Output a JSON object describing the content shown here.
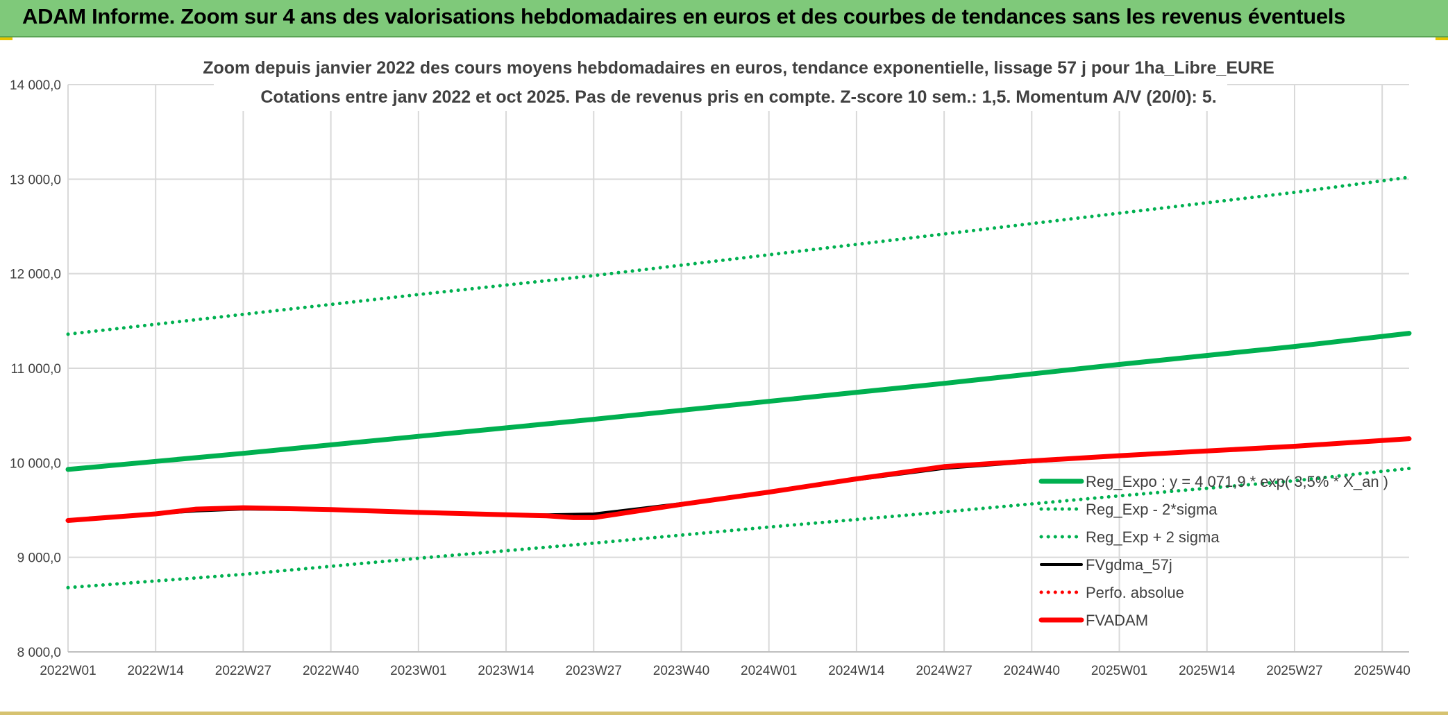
{
  "banner": {
    "title": "ADAM Informe. Zoom sur 4 ans des valorisations hebdomadaires en euros et des courbes de tendances sans les revenus éventuels"
  },
  "colors": {
    "banner": "#7fc97a",
    "green": "#00b050",
    "black": "#000000",
    "red": "#ff0000",
    "grid": "#d9d9d9",
    "axis_text": "#404040"
  },
  "chart_data": {
    "type": "line",
    "title": "Zoom depuis janvier 2022 des cours moyens hebdomadaires en euros, tendance exponentielle, lissage 57 j pour 1ha_Libre_EURE",
    "subtitle": "Cotations entre janv 2022 et oct 2025. Pas de revenus pris en compte. Z-score 10 sem.: 1,5. Momentum A/V (20/0): 5.",
    "xlabel": "",
    "ylabel": "",
    "ylim": [
      8000,
      14000
    ],
    "yticks": [
      "8 000,0",
      "9 000,0",
      "10 000,0",
      "11 000,0",
      "12 000,0",
      "13 000,0",
      "14 000,0"
    ],
    "x_ticks": [
      "2022W01",
      "2022W14",
      "2022W27",
      "2022W40",
      "2023W01",
      "2023W14",
      "2023W27",
      "2023W40",
      "2024W01",
      "2024W14",
      "2024W27",
      "2024W40",
      "2025W01",
      "2025W14",
      "2025W27",
      "2025W40"
    ],
    "x_start": "2022W01",
    "x_end": "2025W44",
    "grid": true,
    "legend_position": "bottom-right inside",
    "series": [
      {
        "name": "Reg_Expo : y = 4 071,9 * exp( 3,5% * X_an )",
        "style": "solid-thick",
        "color": "#00b050",
        "x": [
          "2022W01",
          "2022W27",
          "2023W01",
          "2023W27",
          "2024W01",
          "2024W27",
          "2025W01",
          "2025W27",
          "2025W44"
        ],
        "values": [
          9930,
          10100,
          10280,
          10460,
          10650,
          10840,
          11040,
          11230,
          11370
        ]
      },
      {
        "name": "Reg_Exp - 2*sigma",
        "style": "dotted",
        "color": "#00b050",
        "x": [
          "2022W01",
          "2022W27",
          "2023W01",
          "2023W27",
          "2024W01",
          "2024W27",
          "2025W01",
          "2025W27",
          "2025W44"
        ],
        "values": [
          8680,
          8820,
          8990,
          9150,
          9320,
          9480,
          9650,
          9810,
          9940
        ]
      },
      {
        "name": "Reg_Exp + 2 sigma",
        "style": "dotted",
        "color": "#00b050",
        "x": [
          "2022W01",
          "2022W27",
          "2023W01",
          "2023W27",
          "2024W01",
          "2024W27",
          "2025W01",
          "2025W27",
          "2025W44"
        ],
        "values": [
          11360,
          11570,
          11780,
          11980,
          12200,
          12420,
          12640,
          12860,
          13020
        ]
      },
      {
        "name": "FVgdma_57j",
        "style": "solid",
        "color": "#000000",
        "x": [
          "2022W01",
          "2022W14",
          "2022W20",
          "2022W27",
          "2022W40",
          "2023W01",
          "2023W14",
          "2023W20",
          "2023W27",
          "2023W40",
          "2024W01",
          "2024W14",
          "2024W27",
          "2024W40",
          "2025W01",
          "2025W14",
          "2025W27",
          "2025W44"
        ],
        "values": [
          9390,
          9460,
          9490,
          9510,
          9500,
          9470,
          9450,
          9450,
          9460,
          9570,
          9690,
          9820,
          9940,
          10010,
          10070,
          10120,
          10170,
          10250
        ]
      },
      {
        "name": "Perfo. absolue",
        "style": "dotted",
        "color": "#ff0000",
        "x": [
          "2022W01",
          "2022W14",
          "2022W20",
          "2022W27",
          "2022W40",
          "2023W01",
          "2023W14",
          "2023W20",
          "2023W27",
          "2023W40",
          "2024W01",
          "2024W14",
          "2024W27",
          "2024W40",
          "2025W01",
          "2025W14",
          "2025W27",
          "2025W44"
        ],
        "values": [
          9390,
          9460,
          9510,
          9525,
          9505,
          9475,
          9450,
          9440,
          9420,
          9560,
          9690,
          9830,
          9960,
          10020,
          10075,
          10125,
          10175,
          10255
        ]
      },
      {
        "name": "FVADAM",
        "style": "solid-thick",
        "color": "#ff0000",
        "x": [
          "2022W01",
          "2022W14",
          "2022W20",
          "2022W27",
          "2022W40",
          "2023W01",
          "2023W14",
          "2023W20",
          "2023W24",
          "2023W27",
          "2023W40",
          "2024W01",
          "2024W14",
          "2024W27",
          "2024W40",
          "2025W01",
          "2025W14",
          "2025W27",
          "2025W44"
        ],
        "values": [
          9390,
          9460,
          9510,
          9525,
          9505,
          9475,
          9450,
          9440,
          9420,
          9420,
          9560,
          9690,
          9830,
          9960,
          10020,
          10075,
          10125,
          10175,
          10255
        ]
      }
    ],
    "legend_order": [
      0,
      1,
      2,
      3,
      4,
      5
    ]
  }
}
